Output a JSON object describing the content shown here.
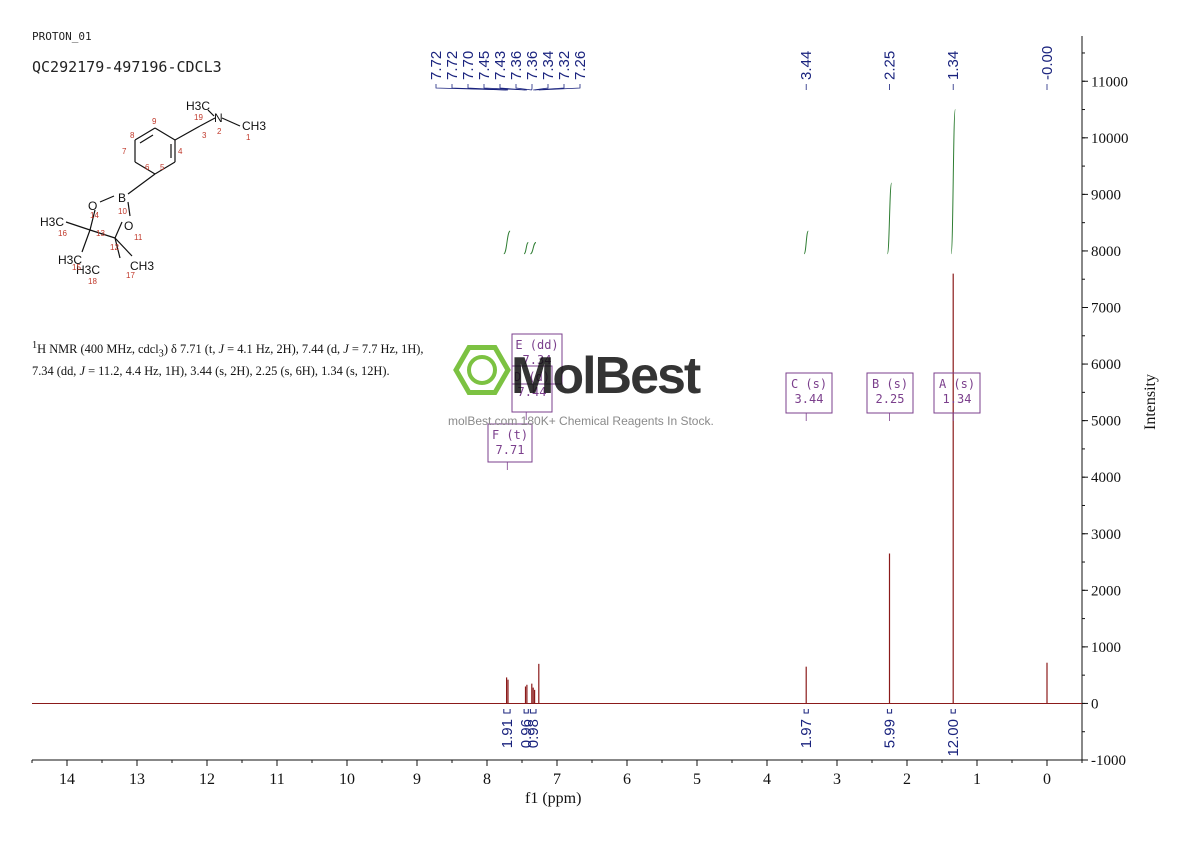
{
  "header": {
    "experiment": "PROTON_01",
    "sample": "QC292179-497196-CDCL3"
  },
  "description_html": "<sup>1</sup>H NMR (400 MHz, cdcl<sub>3</sub>) δ 7.71 (t, <i>J</i> = 4.1 Hz, 2H), 7.44 (d, <i>J</i> = 7.7 Hz, 1H), 7.34 (dd, <i>J</i> = 11.2, 4.4 Hz, 1H), 3.44 (s, 2H), 2.25 (s, 6H), 1.34 (s, 12H).",
  "watermark": {
    "brand": "MolBest",
    "subtitle": "molBest.com 180K+ Chemical Reagents In Stock."
  },
  "colors": {
    "spectrum": "#8b1a1a",
    "integral": "#2e7d32",
    "label": "#1a237e",
    "annotation": "#7b3f8c",
    "watermark_green": "#7cc242",
    "structure_atom_number": "#c0392b"
  },
  "structure": {
    "atoms": [
      "H3C",
      "N",
      "CH3",
      "O",
      "B",
      "O",
      "H3C",
      "H3C",
      "H3C",
      "CH3"
    ],
    "numbers": [
      "19",
      "2",
      "1",
      "3",
      "4",
      "5",
      "6",
      "7",
      "8",
      "9",
      "10",
      "11",
      "12",
      "13",
      "14",
      "15",
      "16",
      "17",
      "18"
    ]
  },
  "chart_data": {
    "type": "line",
    "title": "",
    "xlabel": "f1 (ppm)",
    "ylabel": "Intensity",
    "xlim": [
      14.5,
      -0.5
    ],
    "ylim": [
      -1000,
      11800
    ],
    "x_ticks": [
      14,
      13,
      12,
      11,
      10,
      9,
      8,
      7,
      6,
      5,
      4,
      3,
      2,
      1,
      0
    ],
    "y_ticks": [
      -1000,
      0,
      1000,
      2000,
      3000,
      4000,
      5000,
      6000,
      7000,
      8000,
      9000,
      10000,
      11000
    ],
    "peaks": [
      {
        "ppm": 7.72,
        "intensity": 460
      },
      {
        "ppm": 7.7,
        "intensity": 420
      },
      {
        "ppm": 7.45,
        "intensity": 300
      },
      {
        "ppm": 7.43,
        "intensity": 330
      },
      {
        "ppm": 7.36,
        "intensity": 350
      },
      {
        "ppm": 7.34,
        "intensity": 280
      },
      {
        "ppm": 7.32,
        "intensity": 240
      },
      {
        "ppm": 7.26,
        "intensity": 700
      },
      {
        "ppm": 3.44,
        "intensity": 650
      },
      {
        "ppm": 2.25,
        "intensity": 2650
      },
      {
        "ppm": 1.34,
        "intensity": 7600
      },
      {
        "ppm": 0.0,
        "intensity": 720
      }
    ],
    "peak_labels": [
      "7.72",
      "7.72",
      "7.70",
      "7.45",
      "7.43",
      "7.36",
      "7.36",
      "7.34",
      "7.32",
      "7.26",
      "3.44",
      "2.25",
      "1.34",
      "-0.00"
    ],
    "peak_label_groups": [
      {
        "labels": [
          "7.72",
          "7.72",
          "7.70",
          "7.45",
          "7.43",
          "7.36",
          "7.36",
          "7.34",
          "7.32",
          "7.26"
        ],
        "ppms": [
          7.72,
          7.72,
          7.7,
          7.45,
          7.43,
          7.36,
          7.36,
          7.34,
          7.32,
          7.26
        ]
      },
      {
        "labels": [
          "3.44"
        ],
        "ppms": [
          3.44
        ]
      },
      {
        "labels": [
          "2.25"
        ],
        "ppms": [
          2.25
        ]
      },
      {
        "labels": [
          "1.34"
        ],
        "ppms": [
          1.34
        ]
      },
      {
        "labels": [
          "-0.00"
        ],
        "ppms": [
          0.0
        ]
      }
    ],
    "integrals": [
      {
        "ppm_from": 7.76,
        "ppm_to": 7.67,
        "value": "1.91",
        "curve_low": 7950,
        "curve_high": 8350
      },
      {
        "ppm_from": 7.47,
        "ppm_to": 7.41,
        "value": "0.96",
        "curve_low": 7950,
        "curve_high": 8150
      },
      {
        "ppm_from": 7.38,
        "ppm_to": 7.3,
        "value": "0.98",
        "curve_low": 7950,
        "curve_high": 8150
      },
      {
        "ppm_from": 3.47,
        "ppm_to": 3.41,
        "value": "1.97",
        "curve_low": 7950,
        "curve_high": 8350
      },
      {
        "ppm_from": 2.28,
        "ppm_to": 2.22,
        "value": "5.99",
        "curve_low": 7950,
        "curve_high": 9200
      },
      {
        "ppm_from": 1.37,
        "ppm_to": 1.31,
        "value": "12.00",
        "curve_low": 7950,
        "curve_high": 10500
      }
    ],
    "multiplets": [
      {
        "id": "E",
        "mult": "dd",
        "shift": "7.34",
        "ppm": 7.34
      },
      {
        "id": "D",
        "mult": "d",
        "shift": "7.44",
        "ppm": 7.44
      },
      {
        "id": "F",
        "mult": "t",
        "shift": "7.71",
        "ppm": 7.71
      },
      {
        "id": "C",
        "mult": "s",
        "shift": "3.44",
        "ppm": 3.44
      },
      {
        "id": "B",
        "mult": "s",
        "shift": "2.25",
        "ppm": 2.25
      },
      {
        "id": "A",
        "mult": "s",
        "shift": "1.34",
        "ppm": 1.34
      }
    ]
  }
}
